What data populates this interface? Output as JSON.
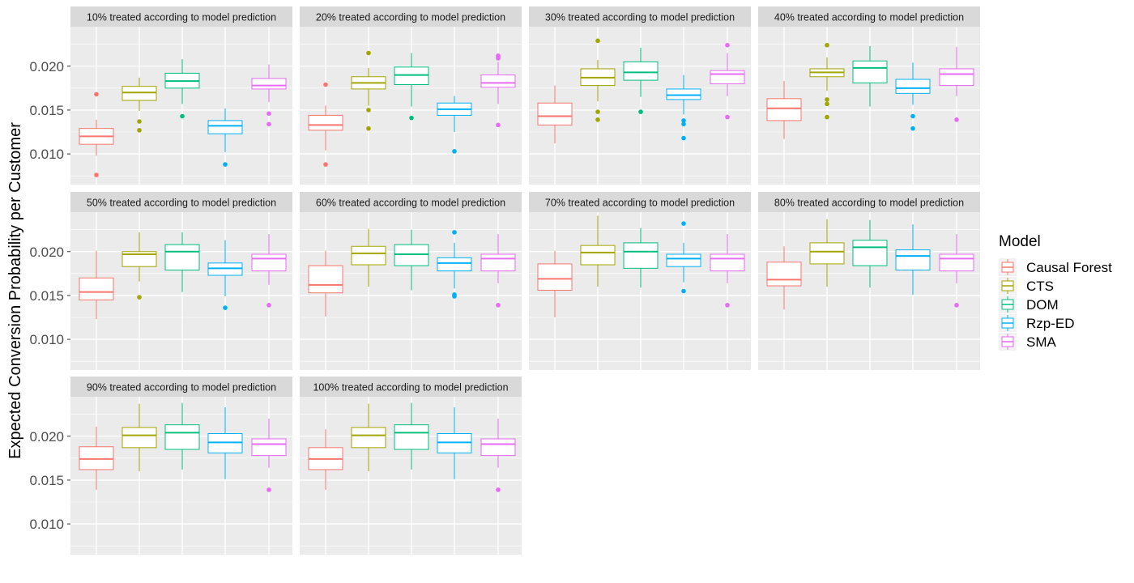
{
  "chart_data": {
    "type": "box",
    "ylabel": "Expected Conversion Probability per Customer",
    "y_ticks": [
      "0.010",
      "0.015",
      "0.020"
    ],
    "ylim": [
      0.0065,
      0.0245
    ],
    "legend": {
      "title": "Model",
      "position": "right"
    },
    "grid": true,
    "series": [
      {
        "name": "Causal Forest",
        "color": "#F8766D"
      },
      {
        "name": "CTS",
        "color": "#A3A500"
      },
      {
        "name": "DOM",
        "color": "#00BF7D"
      },
      {
        "name": "Rzp-ED",
        "color": "#00B0F6"
      },
      {
        "name": "SMA",
        "color": "#E76BF3"
      }
    ],
    "panels": [
      {
        "title": "10% treated according to model prediction",
        "boxes": [
          {
            "min": 0.0098,
            "q1": 0.0111,
            "median": 0.012,
            "q3": 0.0129,
            "max": 0.0139,
            "outliers": [
              0.0168,
              0.0076
            ]
          },
          {
            "min": 0.0149,
            "q1": 0.0161,
            "median": 0.017,
            "q3": 0.0177,
            "max": 0.0187,
            "outliers": [
              0.0137,
              0.0127
            ]
          },
          {
            "min": 0.0157,
            "q1": 0.0175,
            "median": 0.0183,
            "q3": 0.0192,
            "max": 0.0208,
            "outliers": [
              0.0143
            ]
          },
          {
            "min": 0.0102,
            "q1": 0.0123,
            "median": 0.0132,
            "q3": 0.0138,
            "max": 0.0152,
            "outliers": [
              0.0088
            ]
          },
          {
            "min": 0.0159,
            "q1": 0.0174,
            "median": 0.0178,
            "q3": 0.0186,
            "max": 0.0202,
            "outliers": [
              0.0146,
              0.0134
            ]
          }
        ]
      },
      {
        "title": "20% treated according to model prediction",
        "boxes": [
          {
            "min": 0.0104,
            "q1": 0.0127,
            "median": 0.0133,
            "q3": 0.0144,
            "max": 0.0155,
            "outliers": [
              0.0179,
              0.0088
            ]
          },
          {
            "min": 0.0155,
            "q1": 0.0174,
            "median": 0.0181,
            "q3": 0.0188,
            "max": 0.0198,
            "outliers": [
              0.0215,
              0.015,
              0.0129
            ]
          },
          {
            "min": 0.0154,
            "q1": 0.0179,
            "median": 0.019,
            "q3": 0.0199,
            "max": 0.0215,
            "outliers": [
              0.0141
            ]
          },
          {
            "min": 0.0125,
            "q1": 0.0144,
            "median": 0.0151,
            "q3": 0.0158,
            "max": 0.0166,
            "outliers": [
              0.0103
            ]
          },
          {
            "min": 0.0157,
            "q1": 0.0176,
            "median": 0.0181,
            "q3": 0.019,
            "max": 0.0205,
            "outliers": [
              0.0212,
              0.0211,
              0.0209,
              0.0133
            ]
          }
        ]
      },
      {
        "title": "30% treated according to model prediction",
        "boxes": [
          {
            "min": 0.0112,
            "q1": 0.0133,
            "median": 0.0143,
            "q3": 0.0158,
            "max": 0.0178,
            "outliers": []
          },
          {
            "min": 0.016,
            "q1": 0.0178,
            "median": 0.0187,
            "q3": 0.0197,
            "max": 0.0207,
            "outliers": [
              0.0229,
              0.0148,
              0.0139
            ]
          },
          {
            "min": 0.0165,
            "q1": 0.0184,
            "median": 0.0193,
            "q3": 0.0205,
            "max": 0.0221,
            "outliers": [
              0.0148
            ]
          },
          {
            "min": 0.0145,
            "q1": 0.0162,
            "median": 0.0167,
            "q3": 0.0174,
            "max": 0.019,
            "outliers": [
              0.0138,
              0.0134,
              0.0118
            ]
          },
          {
            "min": 0.0166,
            "q1": 0.018,
            "median": 0.0191,
            "q3": 0.0195,
            "max": 0.0215,
            "outliers": [
              0.0224,
              0.0142
            ]
          }
        ]
      },
      {
        "title": "40% treated according to model prediction",
        "boxes": [
          {
            "min": 0.0117,
            "q1": 0.0138,
            "median": 0.0152,
            "q3": 0.0163,
            "max": 0.0183,
            "outliers": []
          },
          {
            "min": 0.0172,
            "q1": 0.0188,
            "median": 0.0193,
            "q3": 0.0197,
            "max": 0.021,
            "outliers": [
              0.0224,
              0.0162,
              0.0157,
              0.0142
            ]
          },
          {
            "min": 0.0154,
            "q1": 0.0181,
            "median": 0.0198,
            "q3": 0.0206,
            "max": 0.0223,
            "outliers": []
          },
          {
            "min": 0.0156,
            "q1": 0.0169,
            "median": 0.0175,
            "q3": 0.0185,
            "max": 0.0204,
            "outliers": [
              0.0143,
              0.0129
            ]
          },
          {
            "min": 0.0166,
            "q1": 0.0178,
            "median": 0.0191,
            "q3": 0.0197,
            "max": 0.0222,
            "outliers": [
              0.0139
            ]
          }
        ]
      },
      {
        "title": "50% treated according to model prediction",
        "boxes": [
          {
            "min": 0.0123,
            "q1": 0.0145,
            "median": 0.0154,
            "q3": 0.017,
            "max": 0.0201,
            "outliers": []
          },
          {
            "min": 0.0166,
            "q1": 0.0183,
            "median": 0.0197,
            "q3": 0.02,
            "max": 0.0222,
            "outliers": [
              0.0148
            ]
          },
          {
            "min": 0.0154,
            "q1": 0.0179,
            "median": 0.02,
            "q3": 0.0208,
            "max": 0.0222,
            "outliers": []
          },
          {
            "min": 0.0149,
            "q1": 0.0173,
            "median": 0.0181,
            "q3": 0.0187,
            "max": 0.0213,
            "outliers": [
              0.0136
            ]
          },
          {
            "min": 0.0162,
            "q1": 0.0178,
            "median": 0.0192,
            "q3": 0.0197,
            "max": 0.022,
            "outliers": [
              0.0139
            ]
          }
        ]
      },
      {
        "title": "60% treated according to model prediction",
        "boxes": [
          {
            "min": 0.0126,
            "q1": 0.0153,
            "median": 0.0162,
            "q3": 0.0184,
            "max": 0.0201,
            "outliers": []
          },
          {
            "min": 0.016,
            "q1": 0.0185,
            "median": 0.0198,
            "q3": 0.0206,
            "max": 0.0226,
            "outliers": []
          },
          {
            "min": 0.0156,
            "q1": 0.0184,
            "median": 0.0197,
            "q3": 0.0208,
            "max": 0.0225,
            "outliers": []
          },
          {
            "min": 0.0158,
            "q1": 0.0178,
            "median": 0.0187,
            "q3": 0.0193,
            "max": 0.021,
            "outliers": [
              0.0222,
              0.0151,
              0.0149
            ]
          },
          {
            "min": 0.0164,
            "q1": 0.0178,
            "median": 0.0192,
            "q3": 0.0197,
            "max": 0.022,
            "outliers": [
              0.0139
            ]
          }
        ]
      },
      {
        "title": "70% treated according to model prediction",
        "boxes": [
          {
            "min": 0.0125,
            "q1": 0.0156,
            "median": 0.0169,
            "q3": 0.0186,
            "max": 0.0201,
            "outliers": []
          },
          {
            "min": 0.016,
            "q1": 0.0185,
            "median": 0.0199,
            "q3": 0.0207,
            "max": 0.0241,
            "outliers": []
          },
          {
            "min": 0.0159,
            "q1": 0.0181,
            "median": 0.02,
            "q3": 0.021,
            "max": 0.0227,
            "outliers": []
          },
          {
            "min": 0.0165,
            "q1": 0.0183,
            "median": 0.0192,
            "q3": 0.0197,
            "max": 0.021,
            "outliers": [
              0.0232,
              0.0155
            ]
          },
          {
            "min": 0.0164,
            "q1": 0.0178,
            "median": 0.0192,
            "q3": 0.0197,
            "max": 0.022,
            "outliers": [
              0.0139
            ]
          }
        ]
      },
      {
        "title": "80% treated according to model prediction",
        "boxes": [
          {
            "min": 0.0134,
            "q1": 0.0161,
            "median": 0.0168,
            "q3": 0.0188,
            "max": 0.0206,
            "outliers": []
          },
          {
            "min": 0.016,
            "q1": 0.0186,
            "median": 0.02,
            "q3": 0.021,
            "max": 0.0237,
            "outliers": []
          },
          {
            "min": 0.0159,
            "q1": 0.0184,
            "median": 0.0205,
            "q3": 0.0213,
            "max": 0.0236,
            "outliers": []
          },
          {
            "min": 0.0151,
            "q1": 0.0179,
            "median": 0.0195,
            "q3": 0.0202,
            "max": 0.0231,
            "outliers": []
          },
          {
            "min": 0.0164,
            "q1": 0.0178,
            "median": 0.0192,
            "q3": 0.0197,
            "max": 0.022,
            "outliers": [
              0.0139
            ]
          }
        ]
      },
      {
        "title": "90% treated according to model prediction",
        "boxes": [
          {
            "min": 0.0139,
            "q1": 0.0162,
            "median": 0.0174,
            "q3": 0.0188,
            "max": 0.0211,
            "outliers": []
          },
          {
            "min": 0.016,
            "q1": 0.0187,
            "median": 0.0201,
            "q3": 0.021,
            "max": 0.0237,
            "outliers": []
          },
          {
            "min": 0.0162,
            "q1": 0.0185,
            "median": 0.0204,
            "q3": 0.0213,
            "max": 0.0238,
            "outliers": []
          },
          {
            "min": 0.0151,
            "q1": 0.0181,
            "median": 0.0193,
            "q3": 0.0203,
            "max": 0.0233,
            "outliers": []
          },
          {
            "min": 0.0164,
            "q1": 0.0178,
            "median": 0.0191,
            "q3": 0.0197,
            "max": 0.022,
            "outliers": [
              0.0139
            ]
          }
        ]
      },
      {
        "title": "100% treated according to model prediction",
        "boxes": [
          {
            "min": 0.0139,
            "q1": 0.0162,
            "median": 0.0174,
            "q3": 0.0187,
            "max": 0.0208,
            "outliers": []
          },
          {
            "min": 0.016,
            "q1": 0.0187,
            "median": 0.0201,
            "q3": 0.021,
            "max": 0.0237,
            "outliers": []
          },
          {
            "min": 0.0162,
            "q1": 0.0185,
            "median": 0.0204,
            "q3": 0.0213,
            "max": 0.0238,
            "outliers": []
          },
          {
            "min": 0.0151,
            "q1": 0.0181,
            "median": 0.0193,
            "q3": 0.0203,
            "max": 0.0233,
            "outliers": []
          },
          {
            "min": 0.0164,
            "q1": 0.0178,
            "median": 0.0191,
            "q3": 0.0197,
            "max": 0.022,
            "outliers": [
              0.0139
            ]
          }
        ]
      }
    ]
  }
}
